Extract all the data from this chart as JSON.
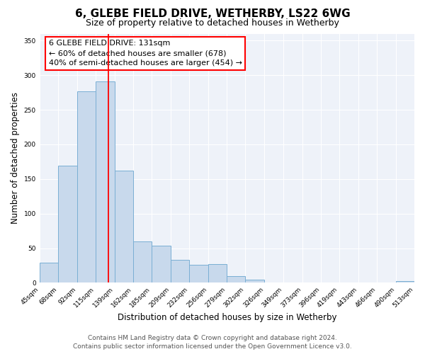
{
  "title": "6, GLEBE FIELD DRIVE, WETHERBY, LS22 6WG",
  "subtitle": "Size of property relative to detached houses in Wetherby",
  "xlabel": "Distribution of detached houses by size in Wetherby",
  "ylabel": "Number of detached properties",
  "bin_edges": [
    45,
    68,
    92,
    115,
    139,
    162,
    185,
    209,
    232,
    256,
    279,
    302,
    326,
    349,
    373,
    396,
    419,
    443,
    466,
    490,
    513
  ],
  "bar_heights": [
    29,
    169,
    277,
    291,
    162,
    60,
    54,
    33,
    26,
    27,
    10,
    5,
    1,
    0,
    0,
    1,
    0,
    0,
    0,
    3
  ],
  "bar_color": "#c8d9ec",
  "bar_edge_color": "#7aafd4",
  "vline_x": 131,
  "ylim": [
    0,
    360
  ],
  "yticks": [
    0,
    50,
    100,
    150,
    200,
    250,
    300,
    350
  ],
  "annotation_title": "6 GLEBE FIELD DRIVE: 131sqm",
  "annotation_line1": "← 60% of detached houses are smaller (678)",
  "annotation_line2": "40% of semi-detached houses are larger (454) →",
  "footer_line1": "Contains HM Land Registry data © Crown copyright and database right 2024.",
  "footer_line2": "Contains public sector information licensed under the Open Government Licence v3.0.",
  "tick_labels": [
    "45sqm",
    "68sqm",
    "92sqm",
    "115sqm",
    "139sqm",
    "162sqm",
    "185sqm",
    "209sqm",
    "232sqm",
    "256sqm",
    "279sqm",
    "302sqm",
    "326sqm",
    "349sqm",
    "373sqm",
    "396sqm",
    "419sqm",
    "443sqm",
    "466sqm",
    "490sqm",
    "513sqm"
  ],
  "background_color": "#eef2f9",
  "grid_color": "#ffffff",
  "title_fontsize": 11,
  "subtitle_fontsize": 9,
  "ylabel_fontsize": 8.5,
  "xlabel_fontsize": 8.5,
  "tick_fontsize": 6.5,
  "ann_fontsize": 8,
  "footer_fontsize": 6.5
}
